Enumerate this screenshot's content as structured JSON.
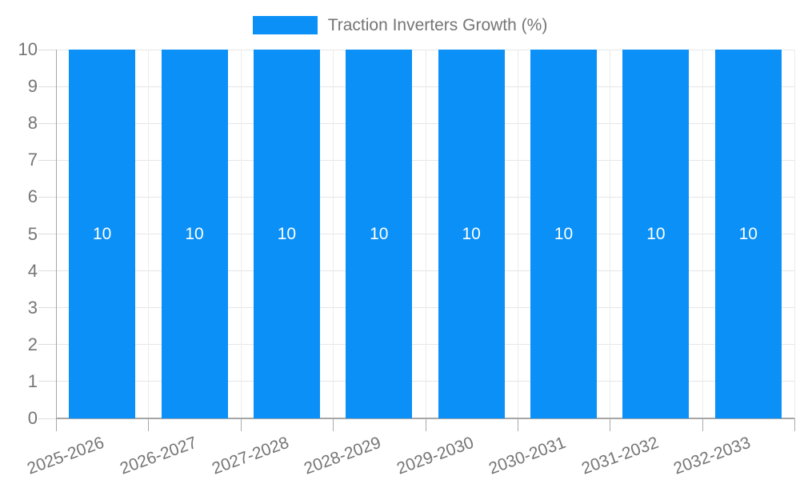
{
  "legend": {
    "label": "Traction Inverters Growth (%)"
  },
  "colors": {
    "bar": "#0A90F7",
    "bar_label": "#ffffff",
    "axis_text": "#757575",
    "axis_line": "#a6a6a6",
    "gridline": "#e6e6e6",
    "minor_vertical_gridline": "#ececec",
    "y_tick_mark": "#dcdcdc",
    "x_tick_mark": "#a9a9a9",
    "background": "#ffffff"
  },
  "chart_data": {
    "type": "bar",
    "title": "Traction Inverters Growth (%)",
    "categories": [
      "2025-2026",
      "2026-2027",
      "2027-2028",
      "2028-2029",
      "2029-2030",
      "2030-2031",
      "2031-2032",
      "2032-2033"
    ],
    "series": [
      {
        "name": "Traction Inverters Growth (%)",
        "values": [
          10,
          10,
          10,
          10,
          10,
          10,
          10,
          10
        ]
      }
    ],
    "bar_value_labels": [
      "10",
      "10",
      "10",
      "10",
      "10",
      "10",
      "10",
      "10"
    ],
    "xlabel": "",
    "ylabel": "",
    "ylim": [
      0,
      10
    ],
    "yticks": [
      0,
      1,
      2,
      3,
      4,
      5,
      6,
      7,
      8,
      9,
      10
    ],
    "grid": true,
    "legend_position": "top-center",
    "x_tick_rotation_deg": -20
  }
}
